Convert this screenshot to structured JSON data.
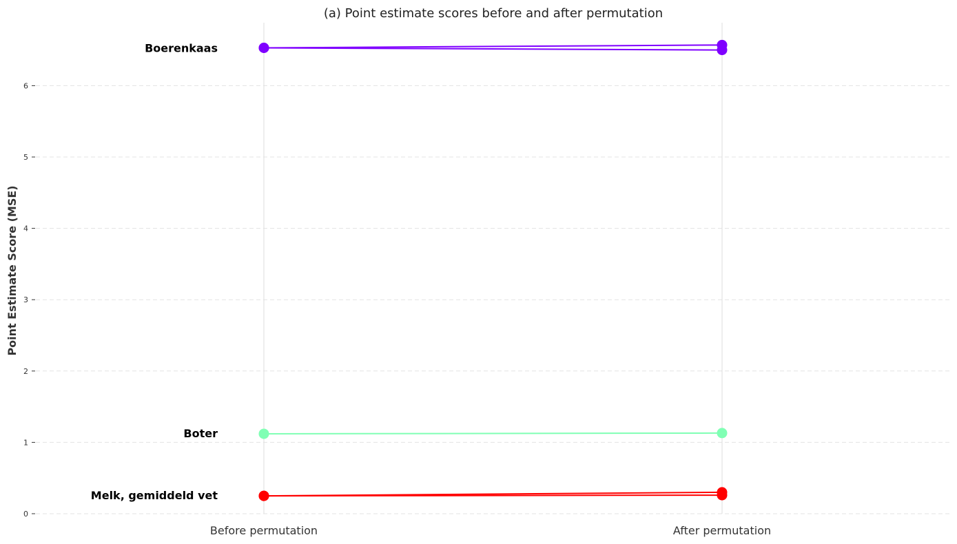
{
  "chart_data": {
    "type": "line",
    "title": "(a) Point estimate scores before and after permutation",
    "xlabel": "",
    "ylabel": "Point Estimate Score (MSE)",
    "categories": [
      "Before permutation",
      "After permutation"
    ],
    "ylim": [
      0,
      6.9
    ],
    "yticks": [
      0,
      1,
      2,
      3,
      4,
      5,
      6
    ],
    "grid": "y-dashed",
    "series": [
      {
        "group": "Boerenkaas",
        "values": [
          6.53,
          6.57
        ],
        "color": "#7f00ff"
      },
      {
        "group": "Boerenkaas",
        "values": [
          6.53,
          6.5
        ],
        "color": "#7f00ff"
      },
      {
        "group": "Boter",
        "values": [
          1.12,
          1.13
        ],
        "color": "#80ffb4"
      },
      {
        "group": "Melk, gemiddeld vet",
        "values": [
          0.25,
          0.3
        ],
        "color": "#ff0000"
      },
      {
        "group": "Melk, gemiddeld vet",
        "values": [
          0.25,
          0.26
        ],
        "color": "#ff0000"
      }
    ],
    "group_labels": [
      {
        "text": "Boerenkaas",
        "y": 6.53
      },
      {
        "text": "Boter",
        "y": 1.13
      },
      {
        "text": "Melk, gemiddeld vet",
        "y": 0.26
      }
    ]
  }
}
